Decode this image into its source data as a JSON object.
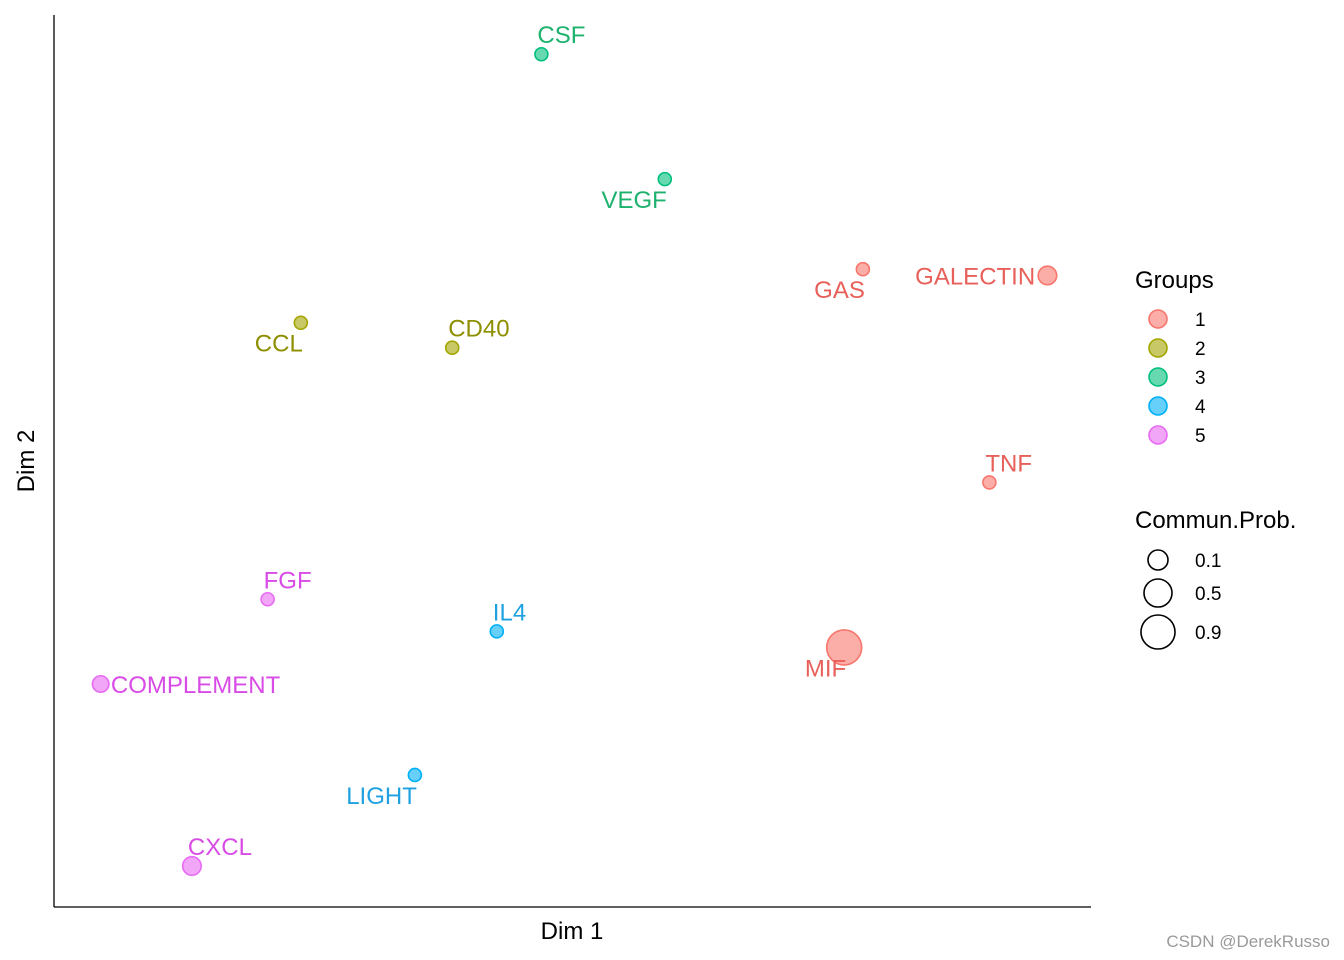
{
  "chart_data": {
    "type": "scatter",
    "xlabel": "Dim 1",
    "ylabel": "Dim 2",
    "xlim": [
      0,
      100
    ],
    "ylim": [
      0,
      100
    ],
    "grid": false,
    "legend_position": "right",
    "groups_title": "Groups",
    "size_title": "Commun.Prob.",
    "group_colors": {
      "1": "#F8766D",
      "2": "#A3A500",
      "3": "#00BF7D",
      "4": "#00B0F6",
      "5": "#E76BF3"
    },
    "group_label_colors": {
      "1": "#E8605A",
      "2": "#8E8F00",
      "3": "#1DB26E",
      "4": "#1FA1E0",
      "5": "#D94BE6"
    },
    "groups": [
      "1",
      "2",
      "3",
      "4",
      "5"
    ],
    "size_legend": [
      0.1,
      0.5,
      0.9
    ],
    "points": [
      {
        "name": "CSF",
        "x": 47.0,
        "y": 95.6,
        "group": "3",
        "prob": 0.1,
        "label_pos": "above-right"
      },
      {
        "name": "VEGF",
        "x": 58.9,
        "y": 81.6,
        "group": "3",
        "prob": 0.1,
        "label_pos": "below-left"
      },
      {
        "name": "GAS",
        "x": 78.0,
        "y": 71.5,
        "group": "1",
        "prob": 0.1,
        "label_pos": "below-left"
      },
      {
        "name": "GALECTIN",
        "x": 95.8,
        "y": 70.8,
        "group": "1",
        "prob": 0.15,
        "label_pos": "left"
      },
      {
        "name": "CCL",
        "x": 23.8,
        "y": 65.5,
        "group": "2",
        "prob": 0.1,
        "label_pos": "below-left"
      },
      {
        "name": "CD40",
        "x": 38.4,
        "y": 62.7,
        "group": "2",
        "prob": 0.1,
        "label_pos": "above-right"
      },
      {
        "name": "TNF",
        "x": 90.2,
        "y": 47.6,
        "group": "1",
        "prob": 0.1,
        "label_pos": "above-right"
      },
      {
        "name": "FGF",
        "x": 20.6,
        "y": 34.5,
        "group": "5",
        "prob": 0.1,
        "label_pos": "above-right"
      },
      {
        "name": "IL4",
        "x": 42.7,
        "y": 30.9,
        "group": "4",
        "prob": 0.1,
        "label_pos": "above-right"
      },
      {
        "name": "MIF",
        "x": 76.2,
        "y": 29.1,
        "group": "1",
        "prob": 0.9,
        "label_pos": "below-left"
      },
      {
        "name": "COMPLEMENT",
        "x": 4.5,
        "y": 25.0,
        "group": "5",
        "prob": 0.12,
        "label_pos": "right"
      },
      {
        "name": "LIGHT",
        "x": 34.8,
        "y": 14.8,
        "group": "4",
        "prob": 0.1,
        "label_pos": "below-left"
      },
      {
        "name": "CXCL",
        "x": 13.3,
        "y": 4.6,
        "group": "5",
        "prob": 0.15,
        "label_pos": "above-right"
      }
    ]
  },
  "watermark": "CSDN @DerekRusso"
}
